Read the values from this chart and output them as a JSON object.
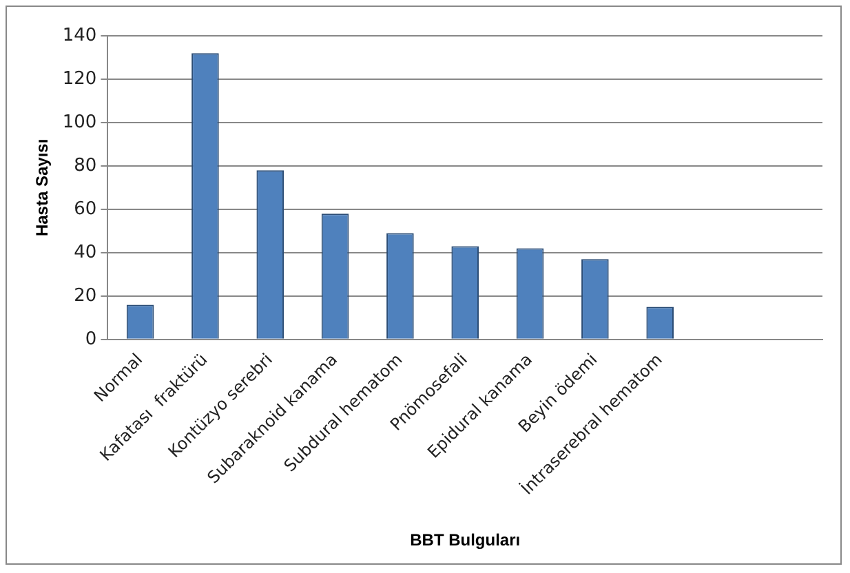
{
  "chart_data": {
    "type": "bar",
    "xlabel": "BBT Bulguları",
    "ylabel": "Hasta Sayısı",
    "categories": [
      "Normal",
      "Kafatası  fraktürü",
      "Kontüzyo serebri",
      "Subaraknoid kanama",
      "Subdural hematom",
      "Pnömosefali",
      "Epidural kanama",
      "Beyin ödemi",
      "İntraserebral hematom",
      null,
      null
    ],
    "values": [
      16,
      132,
      78,
      58,
      49,
      43,
      42,
      37,
      15,
      null,
      null
    ],
    "color": "#4f81bd",
    "ylim": [
      0,
      140
    ],
    "yticks": [
      0,
      20,
      40,
      60,
      80,
      100,
      120,
      140
    ],
    "grid": "y",
    "legend": false
  }
}
